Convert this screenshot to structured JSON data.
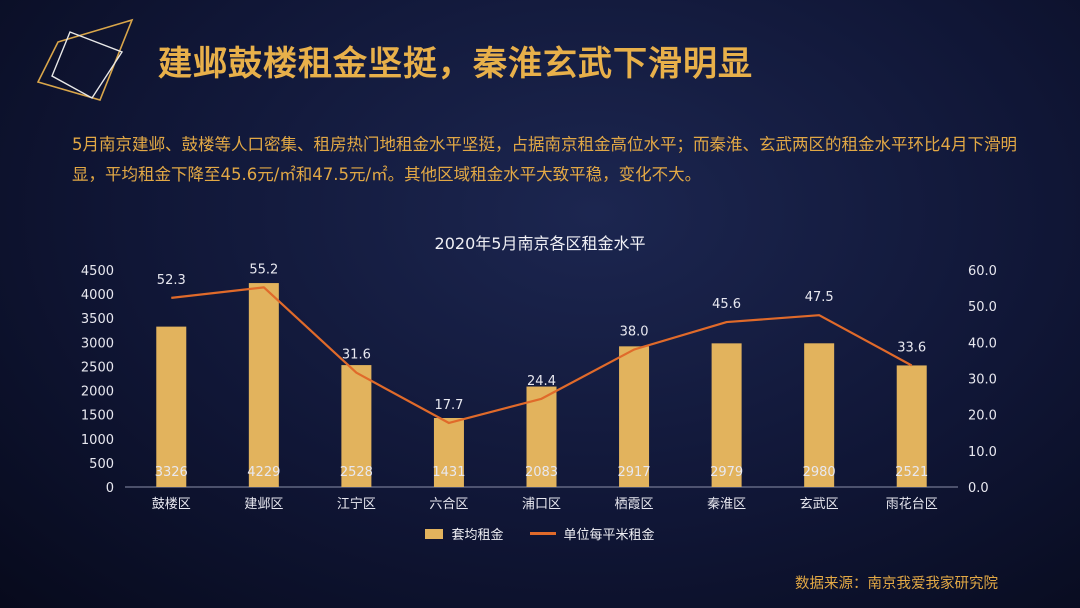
{
  "title": "建邺鼓楼租金坚挺，秦淮玄武下滑明显",
  "description": "5月南京建邺、鼓楼等人口密集、租房热门地租金水平坚挺，占据南京租金高位水平；而秦淮、玄武两区的租金水平环比4月下滑明显，平均租金下降至45.6元/㎡和47.5元/㎡。其他区域租金水平大致平稳，变化不大。",
  "source": "数据来源：南京我爱我家研究院",
  "colors": {
    "accent": "#e8b04a",
    "bar": "#e2b35d",
    "line": "#e06a2a"
  },
  "chart_data": {
    "type": "bar",
    "title": "2020年5月南京各区租金水平",
    "categories": [
      "鼓楼区",
      "建邺区",
      "江宁区",
      "六合区",
      "浦口区",
      "栖霞区",
      "秦淮区",
      "玄武区",
      "雨花台区"
    ],
    "series": [
      {
        "name": "套均租金",
        "type": "bar",
        "axis": "left",
        "values": [
          3326,
          4229,
          2528,
          1431,
          2083,
          2917,
          2979,
          2980,
          2521
        ]
      },
      {
        "name": "单位每平米租金",
        "type": "line",
        "axis": "right",
        "values": [
          52.3,
          55.2,
          31.6,
          17.7,
          24.4,
          38.0,
          45.6,
          47.5,
          33.6
        ]
      }
    ],
    "ylim_left": [
      0,
      4500
    ],
    "yticks_left": [
      "0",
      "500",
      "1000",
      "1500",
      "2000",
      "2500",
      "3000",
      "3500",
      "4000",
      "4500"
    ],
    "ylim_right": [
      0,
      60
    ],
    "yticks_right": [
      "0.0",
      "10.0",
      "20.0",
      "30.0",
      "40.0",
      "50.0",
      "60.0"
    ],
    "grid": false,
    "legend_position": "bottom"
  }
}
